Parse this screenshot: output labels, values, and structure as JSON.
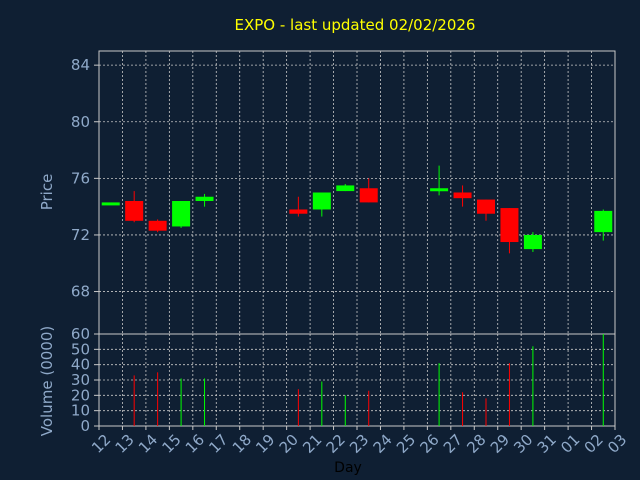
{
  "chart_data": {
    "type": "candlestick",
    "title": "EXPO - last updated 02/02/2026",
    "price_axis": {
      "label": "Price",
      "ticks": [
        68,
        72,
        76,
        80,
        84
      ],
      "ylim": [
        65,
        85
      ]
    },
    "volume_axis": {
      "label": "Volume (0000)",
      "ticks": [
        0,
        10,
        20,
        30,
        40,
        50,
        60
      ],
      "ylim": [
        0,
        60
      ]
    },
    "x_axis": {
      "label": "Day",
      "ticks": [
        "12",
        "13",
        "14",
        "15",
        "16",
        "17",
        "18",
        "19",
        "20",
        "21",
        "22",
        "23",
        "24",
        "25",
        "26",
        "27",
        "28",
        "29",
        "30",
        "31",
        "01",
        "02",
        "03"
      ]
    },
    "grid": true,
    "candles": [
      {
        "day": "12",
        "open": 74.3,
        "high": 74.3,
        "low": 74.3,
        "close": 74.3,
        "volume": 0
      },
      {
        "day": "13",
        "open": 74.4,
        "high": 75.1,
        "low": 72.9,
        "close": 73.0,
        "volume": 33
      },
      {
        "day": "14",
        "open": 73.0,
        "high": 73.1,
        "low": 72.2,
        "close": 72.3,
        "volume": 35
      },
      {
        "day": "15",
        "open": 72.6,
        "high": 74.4,
        "low": 72.5,
        "close": 74.4,
        "volume": 31
      },
      {
        "day": "16",
        "open": 74.4,
        "high": 74.9,
        "low": 74.0,
        "close": 74.7,
        "volume": 31
      },
      {
        "day": "20",
        "open": 73.8,
        "high": 74.7,
        "low": 73.3,
        "close": 73.5,
        "volume": 24
      },
      {
        "day": "21",
        "open": 73.8,
        "high": 75.0,
        "low": 73.3,
        "close": 75.0,
        "volume": 29
      },
      {
        "day": "22",
        "open": 75.1,
        "high": 75.6,
        "low": 75.1,
        "close": 75.5,
        "volume": 20
      },
      {
        "day": "23",
        "open": 75.3,
        "high": 76.0,
        "low": 74.3,
        "close": 74.3,
        "volume": 23
      },
      {
        "day": "26",
        "open": 75.1,
        "high": 76.9,
        "low": 74.8,
        "close": 75.3,
        "volume": 41
      },
      {
        "day": "27",
        "open": 75.0,
        "high": 75.5,
        "low": 74.0,
        "close": 74.6,
        "volume": 22
      },
      {
        "day": "28",
        "open": 74.5,
        "high": 74.5,
        "low": 73.0,
        "close": 73.5,
        "volume": 18
      },
      {
        "day": "29",
        "open": 73.9,
        "high": 73.9,
        "low": 70.7,
        "close": 71.5,
        "volume": 41
      },
      {
        "day": "30",
        "open": 71.0,
        "high": 72.2,
        "low": 70.8,
        "close": 72.0,
        "volume": 52
      },
      {
        "day": "02",
        "open": 72.2,
        "high": 73.8,
        "low": 71.6,
        "close": 73.7,
        "volume": 60
      }
    ],
    "colors": {
      "up": "#00ff00",
      "down": "#ff0000",
      "background": "#0f1f33",
      "grid": "#c8c8c8",
      "title": "#ffff00",
      "axis_text": "#8fa9c9"
    }
  }
}
